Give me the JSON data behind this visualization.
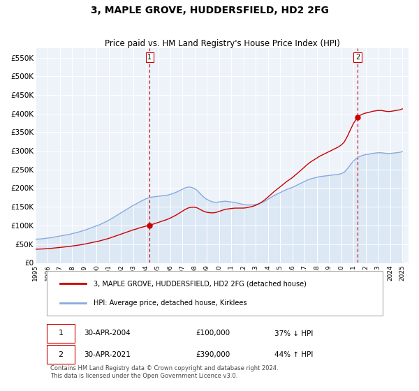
{
  "title": "3, MAPLE GROVE, HUDDERSFIELD, HD2 2FG",
  "subtitle": "Price paid vs. HM Land Registry's House Price Index (HPI)",
  "title_fontsize": 10,
  "subtitle_fontsize": 8.5,
  "ylim": [
    0,
    575000
  ],
  "yticks": [
    0,
    50000,
    100000,
    150000,
    200000,
    250000,
    300000,
    350000,
    400000,
    450000,
    500000,
    550000
  ],
  "ytick_labels": [
    "£0",
    "£50K",
    "£100K",
    "£150K",
    "£200K",
    "£250K",
    "£300K",
    "£350K",
    "£400K",
    "£450K",
    "£500K",
    "£550K"
  ],
  "property_color": "#cc0000",
  "hpi_color": "#88aadd",
  "hpi_fill_color": "#dde8f5",
  "property_label": "3, MAPLE GROVE, HUDDERSFIELD, HD2 2FG (detached house)",
  "hpi_label": "HPI: Average price, detached house, Kirklees",
  "transaction1_date_x": 2004.33,
  "transaction1_price": 100000,
  "transaction2_date_x": 2021.33,
  "transaction2_price": 390000,
  "footer": "Contains HM Land Registry data © Crown copyright and database right 2024.\nThis data is licensed under the Open Government Licence v3.0.",
  "background_color": "#ffffff",
  "chart_bg_color": "#eef3fa",
  "grid_color": "#ffffff",
  "hpi_years": [
    1995.0,
    1995.25,
    1995.5,
    1995.75,
    1996.0,
    1996.25,
    1996.5,
    1996.75,
    1997.0,
    1997.25,
    1997.5,
    1997.75,
    1998.0,
    1998.25,
    1998.5,
    1998.75,
    1999.0,
    1999.25,
    1999.5,
    1999.75,
    2000.0,
    2000.25,
    2000.5,
    2000.75,
    2001.0,
    2001.25,
    2001.5,
    2001.75,
    2002.0,
    2002.25,
    2002.5,
    2002.75,
    2003.0,
    2003.25,
    2003.5,
    2003.75,
    2004.0,
    2004.25,
    2004.5,
    2004.75,
    2005.0,
    2005.25,
    2005.5,
    2005.75,
    2006.0,
    2006.25,
    2006.5,
    2006.75,
    2007.0,
    2007.25,
    2007.5,
    2007.75,
    2008.0,
    2008.25,
    2008.5,
    2008.75,
    2009.0,
    2009.25,
    2009.5,
    2009.75,
    2010.0,
    2010.25,
    2010.5,
    2010.75,
    2011.0,
    2011.25,
    2011.5,
    2011.75,
    2012.0,
    2012.25,
    2012.5,
    2012.75,
    2013.0,
    2013.25,
    2013.5,
    2013.75,
    2014.0,
    2014.25,
    2014.5,
    2014.75,
    2015.0,
    2015.25,
    2015.5,
    2015.75,
    2016.0,
    2016.25,
    2016.5,
    2016.75,
    2017.0,
    2017.25,
    2017.5,
    2017.75,
    2018.0,
    2018.25,
    2018.5,
    2018.75,
    2019.0,
    2019.25,
    2019.5,
    2019.75,
    2020.0,
    2020.25,
    2020.5,
    2020.75,
    2021.0,
    2021.25,
    2021.5,
    2021.75,
    2022.0,
    2022.25,
    2022.5,
    2022.75,
    2023.0,
    2023.25,
    2023.5,
    2023.75,
    2024.0,
    2024.25,
    2024.5,
    2024.75,
    2025.0
  ],
  "hpi_values": [
    63000,
    63500,
    64000,
    65000,
    66000,
    67000,
    68500,
    70000,
    71500,
    73000,
    74500,
    76000,
    78000,
    80000,
    82000,
    84500,
    87000,
    90000,
    93000,
    96000,
    99000,
    102000,
    106000,
    110000,
    114000,
    119000,
    124000,
    129000,
    134000,
    139000,
    144000,
    149000,
    154000,
    158000,
    163000,
    167000,
    171000,
    174000,
    176000,
    177000,
    178000,
    179000,
    180000,
    181000,
    183000,
    186000,
    189000,
    193000,
    197000,
    201000,
    203000,
    202000,
    199000,
    193000,
    184000,
    176000,
    170000,
    166000,
    163000,
    162000,
    163000,
    164000,
    165000,
    164000,
    163000,
    162000,
    160000,
    158000,
    156000,
    155000,
    155000,
    155000,
    156000,
    158000,
    161000,
    165000,
    170000,
    175000,
    180000,
    184000,
    188000,
    192000,
    196000,
    199000,
    202000,
    206000,
    210000,
    214000,
    218000,
    222000,
    225000,
    227000,
    229000,
    231000,
    232000,
    233000,
    234000,
    235000,
    236000,
    237000,
    239000,
    243000,
    252000,
    263000,
    273000,
    280000,
    285000,
    288000,
    290000,
    291000,
    293000,
    294000,
    295000,
    295000,
    294000,
    293000,
    293000,
    294000,
    295000,
    296000,
    298000
  ],
  "xmin": 1995,
  "xmax": 2025.5,
  "xticks": [
    1995,
    1996,
    1997,
    1998,
    1999,
    2000,
    2001,
    2002,
    2003,
    2004,
    2005,
    2006,
    2007,
    2008,
    2009,
    2010,
    2011,
    2012,
    2013,
    2014,
    2015,
    2016,
    2017,
    2018,
    2019,
    2020,
    2021,
    2022,
    2023,
    2024,
    2025
  ]
}
